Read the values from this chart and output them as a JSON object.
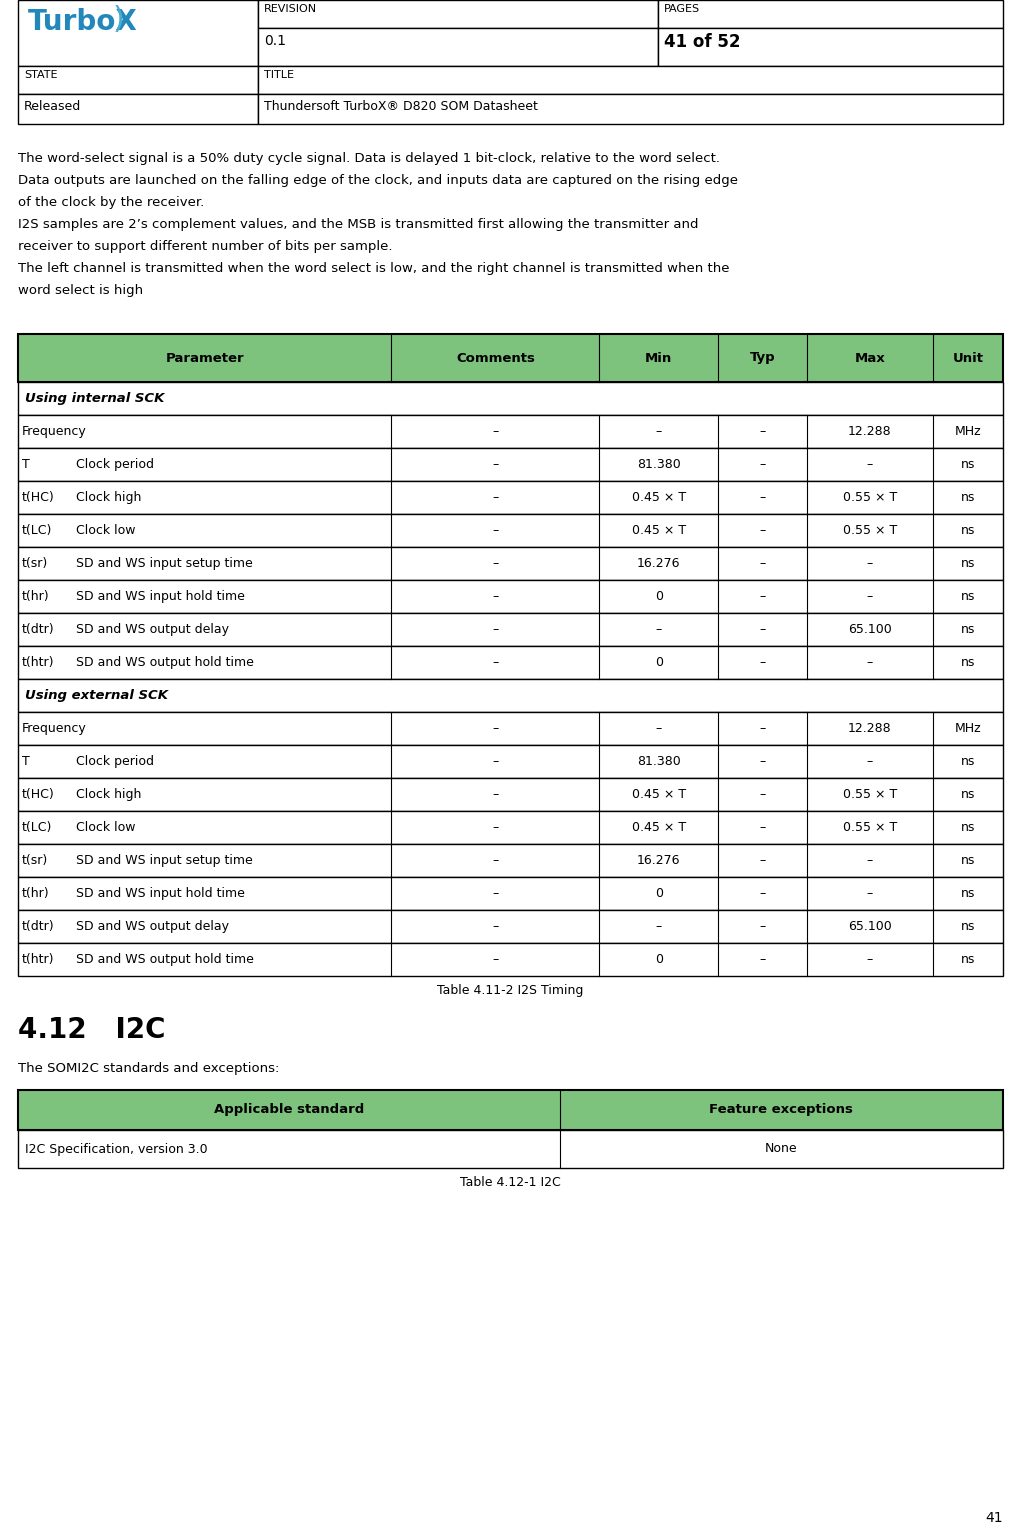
{
  "revision": "0.1",
  "pages": "41 of 52",
  "state": "Released",
  "title": "Thundersoft TurboX® D820 SOM Datasheet",
  "page_number": "41",
  "intro_text_lines": [
    "The word-select signal is a 50% duty cycle signal. Data is delayed 1 bit-clock, relative to the word select.",
    "Data outputs are launched on the falling edge of the clock, and inputs data are captured on the rising edge",
    "of the clock by the receiver.",
    "I2S samples are 2’s complement values, and the MSB is transmitted first allowing the transmitter and",
    "receiver to support different number of bits per sample.",
    "The left channel is transmitted when the word select is low, and the right channel is transmitted when the",
    "word select is high"
  ],
  "table1_caption": "Table 4.11-2 I2S Timing",
  "table1_header": [
    "Parameter",
    "Comments",
    "Min",
    "Typ",
    "Max",
    "Unit"
  ],
  "header_bg": "#7DC27D",
  "table1_rows": [
    {
      "type": "section",
      "col0": "Using internal SCK",
      "col0b": "",
      "col1": "",
      "col2": "",
      "col3": "",
      "col4": "",
      "col5": ""
    },
    {
      "type": "data",
      "col0": "Frequency",
      "col0b": "",
      "col1": "–",
      "col2": "–",
      "col3": "–",
      "col4": "12.288",
      "col5": "MHz"
    },
    {
      "type": "data",
      "col0": "T",
      "col0b": "Clock period",
      "col1": "–",
      "col2": "81.380",
      "col3": "–",
      "col4": "–",
      "col5": "ns"
    },
    {
      "type": "data",
      "col0": "t(HC)",
      "col0b": "Clock high",
      "col1": "–",
      "col2": "0.45 × T",
      "col3": "–",
      "col4": "0.55 × T",
      "col5": "ns"
    },
    {
      "type": "data",
      "col0": "t(LC)",
      "col0b": "Clock low",
      "col1": "–",
      "col2": "0.45 × T",
      "col3": "–",
      "col4": "0.55 × T",
      "col5": "ns"
    },
    {
      "type": "data",
      "col0": "t(sr)",
      "col0b": "SD and WS input setup time",
      "col1": "–",
      "col2": "16.276",
      "col3": "–",
      "col4": "–",
      "col5": "ns"
    },
    {
      "type": "data",
      "col0": "t(hr)",
      "col0b": "SD and WS input hold time",
      "col1": "–",
      "col2": "0",
      "col3": "–",
      "col4": "–",
      "col5": "ns"
    },
    {
      "type": "data",
      "col0": "t(dtr)",
      "col0b": "SD and WS output delay",
      "col1": "–",
      "col2": "–",
      "col3": "–",
      "col4": "65.100",
      "col5": "ns"
    },
    {
      "type": "data",
      "col0": "t(htr)",
      "col0b": "SD and WS output hold time",
      "col1": "–",
      "col2": "0",
      "col3": "–",
      "col4": "–",
      "col5": "ns"
    },
    {
      "type": "section",
      "col0": "Using external SCK",
      "col0b": "",
      "col1": "",
      "col2": "",
      "col3": "",
      "col4": "",
      "col5": ""
    },
    {
      "type": "data",
      "col0": "Frequency",
      "col0b": "",
      "col1": "–",
      "col2": "–",
      "col3": "–",
      "col4": "12.288",
      "col5": "MHz"
    },
    {
      "type": "data",
      "col0": "T",
      "col0b": "Clock period",
      "col1": "–",
      "col2": "81.380",
      "col3": "–",
      "col4": "–",
      "col5": "ns"
    },
    {
      "type": "data",
      "col0": "t(HC)",
      "col0b": "Clock high",
      "col1": "–",
      "col2": "0.45 × T",
      "col3": "–",
      "col4": "0.55 × T",
      "col5": "ns"
    },
    {
      "type": "data",
      "col0": "t(LC)",
      "col0b": "Clock low",
      "col1": "–",
      "col2": "0.45 × T",
      "col3": "–",
      "col4": "0.55 × T",
      "col5": "ns"
    },
    {
      "type": "data",
      "col0": "t(sr)",
      "col0b": "SD and WS input setup time",
      "col1": "–",
      "col2": "16.276",
      "col3": "–",
      "col4": "–",
      "col5": "ns"
    },
    {
      "type": "data",
      "col0": "t(hr)",
      "col0b": "SD and WS input hold time",
      "col1": "–",
      "col2": "0",
      "col3": "–",
      "col4": "–",
      "col5": "ns"
    },
    {
      "type": "data",
      "col0": "t(dtr)",
      "col0b": "SD and WS output delay",
      "col1": "–",
      "col2": "–",
      "col3": "–",
      "col4": "65.100",
      "col5": "ns"
    },
    {
      "type": "data",
      "col0": "t(htr)",
      "col0b": "SD and WS output hold time",
      "col1": "–",
      "col2": "0",
      "col3": "–",
      "col4": "–",
      "col5": "ns"
    }
  ],
  "section412_title": "4.12   I2C",
  "section412_text": "The SOMI2C standards and exceptions:",
  "table2_caption": "Table 4.12-1 I2C",
  "table2_header": [
    "Applicable standard",
    "Feature exceptions"
  ],
  "table2_rows": [
    {
      "col0": "I2C Specification, version 3.0",
      "col1": "None"
    }
  ],
  "bg_color": "#ffffff",
  "border_color": "#000000",
  "logo_color": "#2288BB",
  "logo_wing_color": "#4AABCC"
}
